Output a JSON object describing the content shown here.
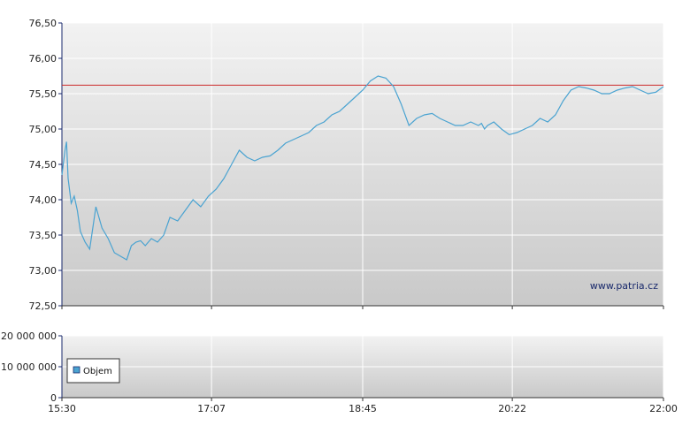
{
  "chart_data": [
    {
      "type": "line",
      "title": "",
      "xlabel": "",
      "ylabel": "",
      "x_tick_labels": [
        "15:30",
        "17:07",
        "18:45",
        "20:22",
        "22:00"
      ],
      "y_tick_labels": [
        "72,50",
        "73,00",
        "73,50",
        "74,00",
        "74,50",
        "75,00",
        "75,50",
        "76,00",
        "76,50"
      ],
      "ylim": [
        72.5,
        76.5
      ],
      "xlim": [
        "15:30",
        "22:00"
      ],
      "grid": true,
      "reference_line": {
        "value": 75.62,
        "color": "#cc2b2b"
      },
      "watermark": "www.patria.cz",
      "series": [
        {
          "color": "#4aa3d1",
          "x": [
            "15:30",
            "15:32",
            "15:33",
            "15:34",
            "15:36",
            "15:38",
            "15:40",
            "15:42",
            "15:45",
            "15:48",
            "15:52",
            "15:56",
            "16:00",
            "16:04",
            "16:08",
            "16:12",
            "16:15",
            "16:18",
            "16:21",
            "16:24",
            "16:28",
            "16:32",
            "16:36",
            "16:40",
            "16:45",
            "16:50",
            "16:55",
            "17:00",
            "17:05",
            "17:10",
            "17:15",
            "17:20",
            "17:25",
            "17:30",
            "17:35",
            "17:40",
            "17:45",
            "17:50",
            "17:55",
            "18:00",
            "18:05",
            "18:10",
            "18:15",
            "18:20",
            "18:25",
            "18:30",
            "18:35",
            "18:40",
            "18:45",
            "18:50",
            "18:55",
            "19:00",
            "19:05",
            "19:10",
            "19:15",
            "19:20",
            "19:25",
            "19:30",
            "19:35",
            "19:40",
            "19:45",
            "19:50",
            "19:55",
            "20:00",
            "20:02",
            "20:04",
            "20:06",
            "20:10",
            "20:15",
            "20:20",
            "20:25",
            "20:30",
            "20:35",
            "20:40",
            "20:45",
            "20:50",
            "20:55",
            "21:00",
            "21:05",
            "21:10",
            "21:15",
            "21:20",
            "21:25",
            "21:30",
            "21:35",
            "21:40",
            "21:45",
            "21:50",
            "21:55",
            "22:00"
          ],
          "values": [
            74.35,
            74.7,
            74.82,
            74.3,
            73.95,
            74.05,
            73.85,
            73.55,
            73.4,
            73.3,
            73.9,
            73.6,
            73.45,
            73.25,
            73.2,
            73.15,
            73.35,
            73.4,
            73.42,
            73.35,
            73.45,
            73.4,
            73.5,
            73.75,
            73.7,
            73.85,
            74.0,
            73.9,
            74.05,
            74.15,
            74.3,
            74.5,
            74.7,
            74.6,
            74.55,
            74.6,
            74.62,
            74.7,
            74.8,
            74.85,
            74.9,
            74.95,
            75.05,
            75.1,
            75.2,
            75.25,
            75.35,
            75.45,
            75.55,
            75.68,
            75.75,
            75.72,
            75.6,
            75.35,
            75.05,
            75.15,
            75.2,
            75.22,
            75.15,
            75.1,
            75.05,
            75.05,
            75.1,
            75.05,
            75.08,
            75.0,
            75.05,
            75.1,
            75.0,
            74.92,
            74.95,
            75.0,
            75.05,
            75.15,
            75.1,
            75.2,
            75.4,
            75.55,
            75.6,
            75.58,
            75.55,
            75.5,
            75.5,
            75.55,
            75.58,
            75.6,
            75.55,
            75.5,
            75.52,
            75.6
          ]
        }
      ]
    },
    {
      "type": "bar",
      "title": "",
      "y_tick_labels": [
        "0",
        "10 000 000",
        "20 000 000"
      ],
      "ylim": [
        0,
        20000000
      ],
      "grid": true,
      "legend": {
        "position": "bottom-left",
        "entries": [
          {
            "name": "Objem",
            "color": "#4aa3d1"
          }
        ]
      },
      "series": [
        {
          "name": "Objem",
          "values": []
        }
      ]
    }
  ]
}
